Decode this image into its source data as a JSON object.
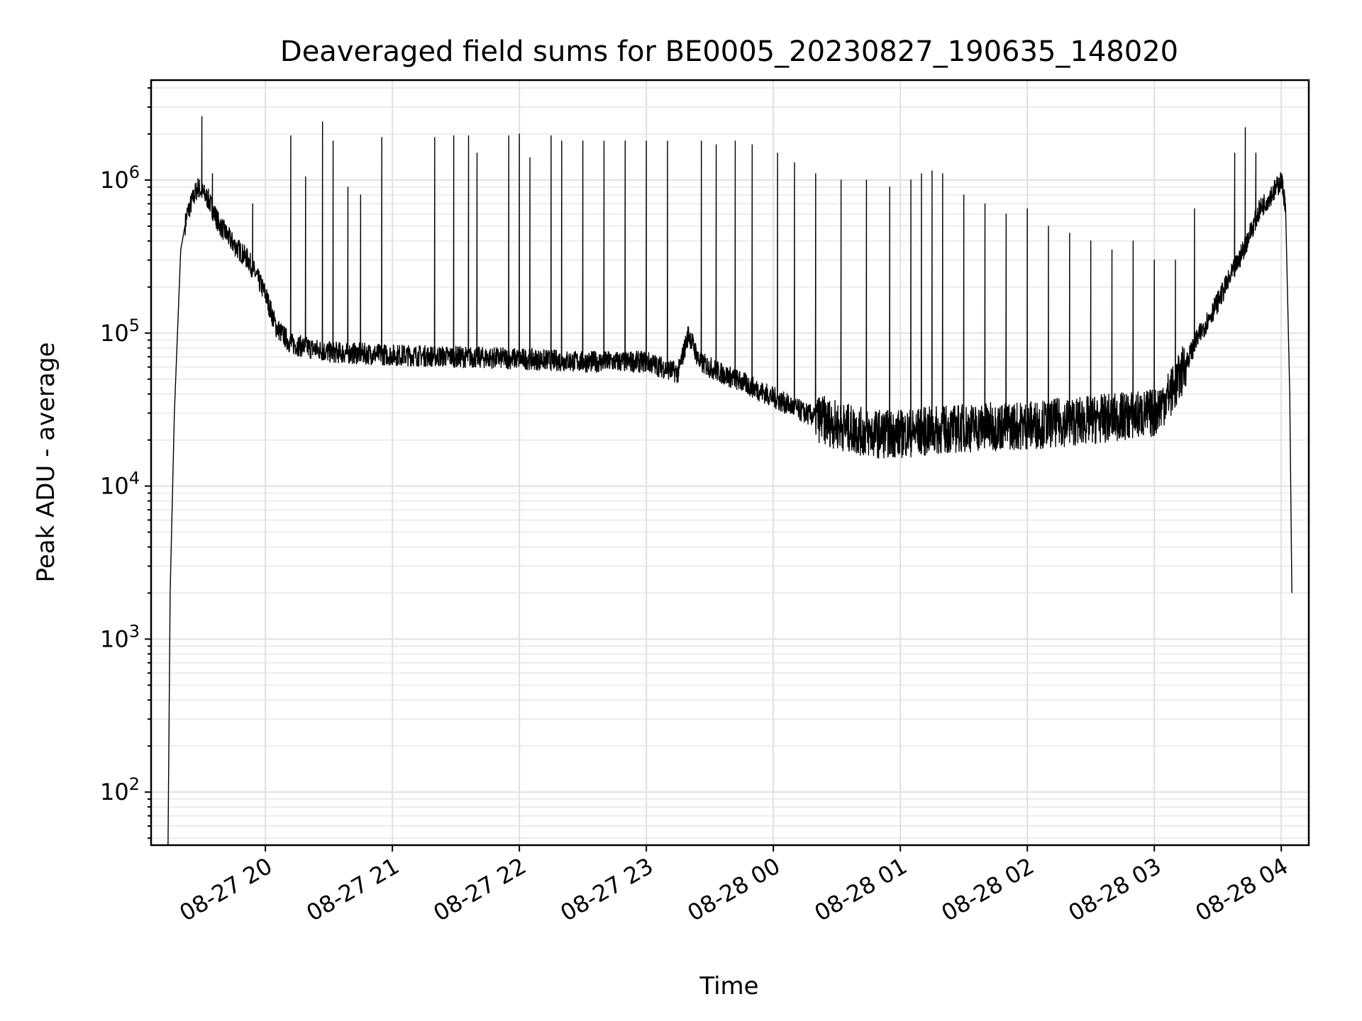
{
  "chart_data": {
    "type": "line",
    "title": "Deaveraged field sums for BE0005_20230827_190635_148020",
    "xlabel": "Time",
    "ylabel": "Peak ADU - average",
    "yscale": "log",
    "ylim": [
      45,
      4500000
    ],
    "xlim": [
      "2023-08-27 19:06",
      "2023-08-28 04:13"
    ],
    "x_ticks": [
      "08-27 20",
      "08-27 21",
      "08-27 22",
      "08-27 23",
      "08-28 00",
      "08-28 01",
      "08-28 02",
      "08-28 03",
      "08-28 04"
    ],
    "x_tick_times": [
      "2023-08-27 20:00",
      "2023-08-27 21:00",
      "2023-08-27 22:00",
      "2023-08-27 23:00",
      "2023-08-28 00:00",
      "2023-08-28 01:00",
      "2023-08-28 02:00",
      "2023-08-28 03:00",
      "2023-08-28 04:00"
    ],
    "y_ticks": [
      {
        "base": "10",
        "exp": "2",
        "value": 100
      },
      {
        "base": "10",
        "exp": "3",
        "value": 1000
      },
      {
        "base": "10",
        "exp": "4",
        "value": 10000
      },
      {
        "base": "10",
        "exp": "5",
        "value": 100000
      },
      {
        "base": "10",
        "exp": "6",
        "value": 1000000
      }
    ],
    "grid": true,
    "series": [
      {
        "color": "#000000",
        "baseline": {
          "x": [
            "2023-08-27 19:14",
            "2023-08-27 19:15",
            "2023-08-27 19:17",
            "2023-08-27 19:20",
            "2023-08-27 19:23",
            "2023-08-27 19:28",
            "2023-08-27 19:33",
            "2023-08-27 19:38",
            "2023-08-27 19:45",
            "2023-08-27 19:52",
            "2023-08-27 20:00",
            "2023-08-27 20:05",
            "2023-08-27 20:12",
            "2023-08-27 20:30",
            "2023-08-27 21:00",
            "2023-08-27 21:30",
            "2023-08-27 22:00",
            "2023-08-27 22:30",
            "2023-08-27 23:00",
            "2023-08-27 23:15",
            "2023-08-27 23:20",
            "2023-08-27 23:25",
            "2023-08-27 23:35",
            "2023-08-27 23:45",
            "2023-08-28 00:00",
            "2023-08-28 00:15",
            "2023-08-28 00:30",
            "2023-08-28 00:45",
            "2023-08-28 01:00",
            "2023-08-28 01:30",
            "2023-08-28 02:00",
            "2023-08-28 02:30",
            "2023-08-28 03:00",
            "2023-08-28 03:10",
            "2023-08-28 03:20",
            "2023-08-28 03:30",
            "2023-08-28 03:40",
            "2023-08-28 03:50",
            "2023-08-28 03:58",
            "2023-08-28 04:00",
            "2023-08-28 04:02",
            "2023-08-28 04:04",
            "2023-08-28 04:05"
          ],
          "y": [
            45,
            2000,
            30000,
            350000,
            600000,
            900000,
            750000,
            520000,
            380000,
            300000,
            180000,
            110000,
            85000,
            75000,
            72000,
            70000,
            68000,
            65000,
            65000,
            55000,
            100000,
            65000,
            55000,
            48000,
            38000,
            30000,
            25000,
            22000,
            22000,
            24000,
            25000,
            27000,
            30000,
            45000,
            90000,
            160000,
            300000,
            650000,
            900000,
            1000000,
            700000,
            40000,
            2000
          ]
        },
        "spikes": {
          "x": [
            "2023-08-27 19:30",
            "2023-08-27 19:35",
            "2023-08-27 19:54",
            "2023-08-27 20:12",
            "2023-08-27 20:19",
            "2023-08-27 20:27",
            "2023-08-27 20:32",
            "2023-08-27 20:39",
            "2023-08-27 20:45",
            "2023-08-27 20:55",
            "2023-08-27 21:20",
            "2023-08-27 21:29",
            "2023-08-27 21:36",
            "2023-08-27 21:40",
            "2023-08-27 21:55",
            "2023-08-27 22:00",
            "2023-08-27 22:05",
            "2023-08-27 22:15",
            "2023-08-27 22:20",
            "2023-08-27 22:30",
            "2023-08-27 22:40",
            "2023-08-27 22:50",
            "2023-08-27 23:00",
            "2023-08-27 23:10",
            "2023-08-27 23:26",
            "2023-08-27 23:33",
            "2023-08-27 23:42",
            "2023-08-27 23:50",
            "2023-08-28 00:02",
            "2023-08-28 00:10",
            "2023-08-28 00:20",
            "2023-08-28 00:32",
            "2023-08-28 00:44",
            "2023-08-28 00:55",
            "2023-08-28 01:05",
            "2023-08-28 01:10",
            "2023-08-28 01:15",
            "2023-08-28 01:20",
            "2023-08-28 01:30",
            "2023-08-28 01:40",
            "2023-08-28 01:50",
            "2023-08-28 02:00",
            "2023-08-28 02:10",
            "2023-08-28 02:20",
            "2023-08-28 02:30",
            "2023-08-28 02:40",
            "2023-08-28 02:50",
            "2023-08-28 03:00",
            "2023-08-28 03:10",
            "2023-08-28 03:19",
            "2023-08-28 03:38",
            "2023-08-28 03:43",
            "2023-08-28 03:48"
          ],
          "y": [
            2600000,
            1100000,
            700000,
            1950000,
            1050000,
            2400000,
            1800000,
            900000,
            800000,
            1900000,
            1900000,
            1950000,
            1950000,
            1500000,
            1950000,
            2000000,
            1400000,
            1950000,
            1800000,
            1800000,
            1800000,
            1800000,
            1800000,
            1800000,
            1800000,
            1700000,
            1800000,
            1700000,
            1500000,
            1300000,
            1100000,
            1000000,
            1000000,
            900000,
            1000000,
            1100000,
            1150000,
            1100000,
            800000,
            700000,
            600000,
            650000,
            500000,
            450000,
            400000,
            350000,
            400000,
            300000,
            300000,
            650000,
            1500000,
            2200000,
            1500000
          ]
        }
      }
    ]
  }
}
